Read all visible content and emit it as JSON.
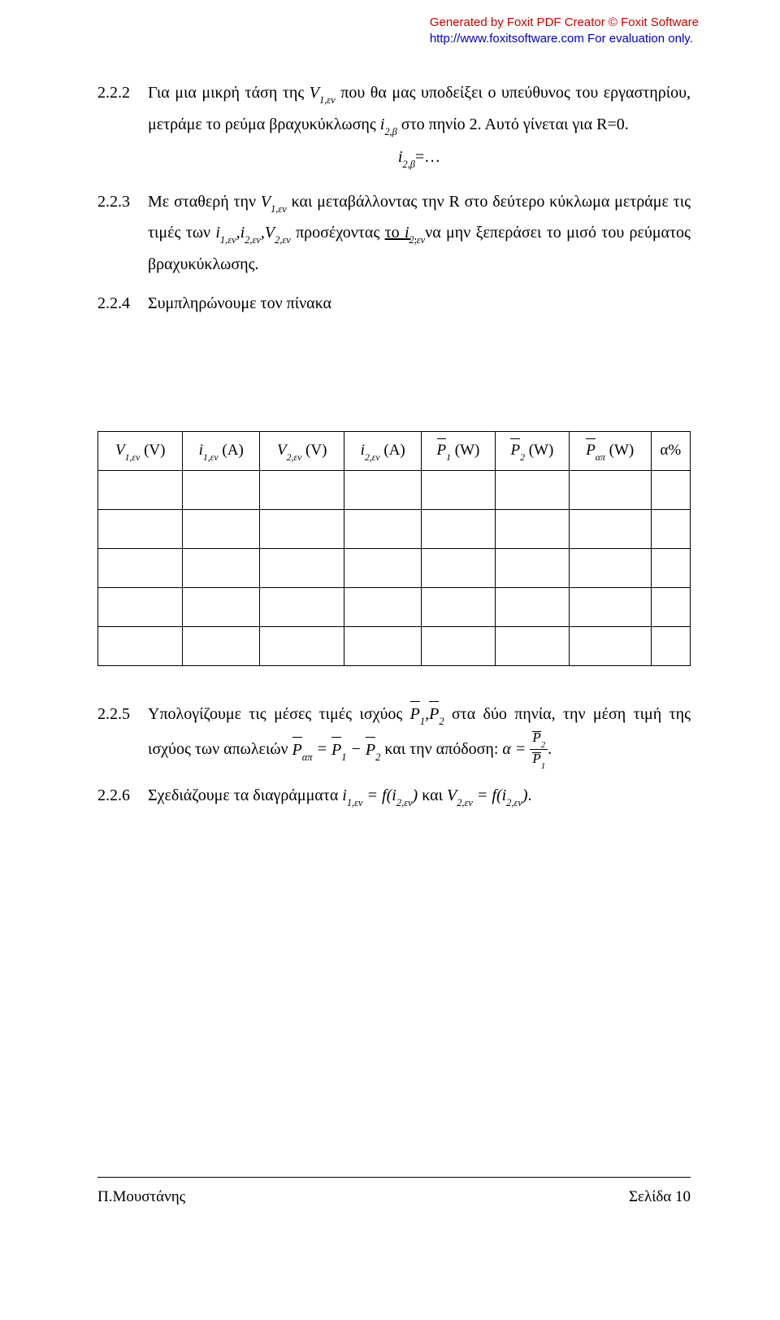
{
  "watermark": {
    "line1": "Generated by Foxit PDF Creator © Foxit Software",
    "line2": "http://www.foxitsoftware.com   For evaluation only."
  },
  "items": {
    "n222": "2.2.2",
    "t222a": "Για μια μικρή τάση  της ",
    "t222b": " που θα μας υποδείξει ο υπεύθυνος του εργαστηρίου, μετράμε το ρεύμα βραχυκύκλωσης ",
    "t222c": " στο πηνίο 2. Αυτό γίνεται για R=0.",
    "eq222": "=…",
    "n223": "2.2.3",
    "t223a": "Με σταθερή την ",
    "t223b": " και μεταβάλλοντας την R στο δεύτερο κύκλωμα μετράμε τις τιμές των ",
    "t223c": " προσέχοντας  ",
    "t223d": "το ",
    "t223e": "να μην ξεπεράσει το μισό του ρεύματος βραχυκύκλωσης.",
    "n224": "2.2.4",
    "t224": "Συμπληρώνουμε τον πίνακα",
    "n225": "2.2.5",
    "t225a": "Υπολογίζουμε τις μέσες τιμές ισχύος ",
    "t225b": " στα δύο πηνία, την μέση τιμή της ισχύος των απωλειών ",
    "t225c": " και την απόδοση: ",
    "n226": "2.2.6",
    "t226a": "Σχεδιάζουμε τα διαγράμματα ",
    "t226b": " και "
  },
  "symbols": {
    "V1en": "V",
    "V1en_sub": "1,εν",
    "i2b": "i",
    "i2b_sub": "2,β",
    "i1en": "i",
    "i1en_sub": "1,εν",
    "i2en": "i",
    "i2en_sub": "2,εν",
    "V2en": "V",
    "V2en_sub": "2,εν",
    "P1": "P",
    "P1_sub": "1",
    "P2": "P",
    "P2_sub": "2",
    "Pap": "P",
    "Pap_sub": "απ",
    "alpha": "α",
    "alpha_gr": "α",
    "eq": " = ",
    "minus": " − ",
    "comma": ",",
    "f": "f",
    "period": "."
  },
  "table": {
    "h1": " (V)",
    "h2": " (A)",
    "h3": " (V)",
    "h4": " (A)",
    "h5": " (W)",
    "h6": " (W)",
    "h7": " (W)",
    "h8": "α%"
  },
  "footer": {
    "left": "Π.Μουστάνης",
    "right": "Σελίδα 10"
  }
}
